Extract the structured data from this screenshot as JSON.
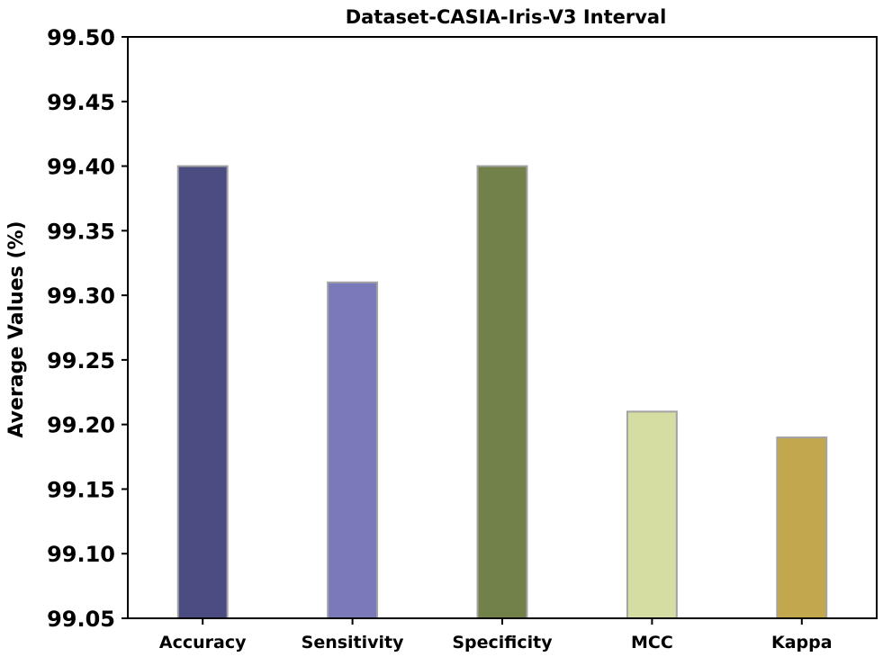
{
  "chart_data": {
    "type": "bar",
    "title": "Dataset-CASIA-Iris-V3 Interval",
    "xlabel": "",
    "ylabel": "Average Values (%)",
    "categories": [
      "Accuracy",
      "Sensitivity",
      "Specificity",
      "MCC",
      "Kappa"
    ],
    "values": [
      99.4,
      99.31,
      99.4,
      99.21,
      99.19
    ],
    "colors": [
      "#4b4d82",
      "#7a7aba",
      "#718149",
      "#d5dda3",
      "#c2a74e"
    ],
    "ylim": [
      99.05,
      99.5
    ],
    "yticks": [
      "99.05",
      "99.10",
      "99.15",
      "99.20",
      "99.25",
      "99.30",
      "99.35",
      "99.40",
      "99.45",
      "99.50"
    ],
    "grid": false,
    "legend": "none"
  }
}
